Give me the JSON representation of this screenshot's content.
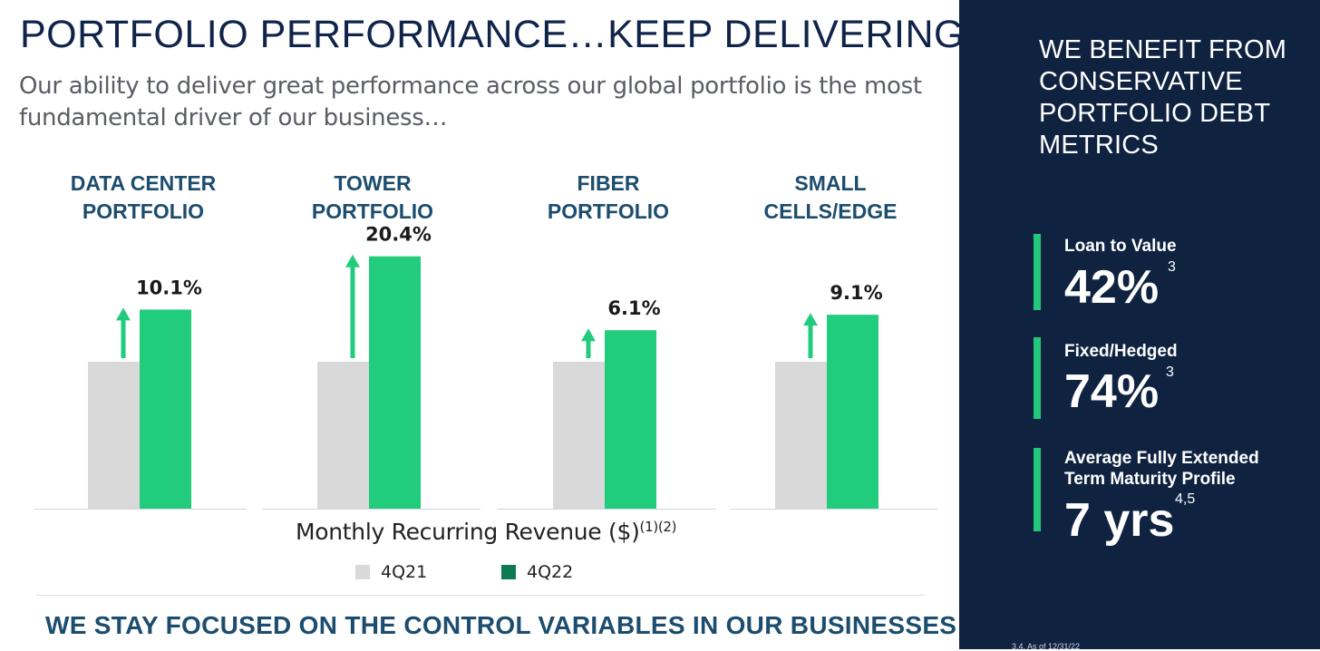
{
  "title": "PORTFOLIO PERFORMANCE…KEEP DELIVERING",
  "subtitle": "Our ability to deliver great performance across our global portfolio is the most fundamental driver of our business…",
  "chart_data": {
    "type": "bar",
    "caption_main": "Monthly Recurring Revenue ($)",
    "caption_sup": "(1)(2)",
    "colors": {
      "4Q21": "#d9d9d9",
      "4Q22": "#22cc7d",
      "legend_4Q22": "#0e7a52",
      "arrow": "#22cc7d"
    },
    "legend": [
      {
        "name": "4Q21"
      },
      {
        "name": "4Q22"
      }
    ],
    "panels": [
      {
        "label_lines": [
          "DATA CENTER",
          "PORTFOLIO"
        ],
        "growth_label": "10.1%",
        "growth": 10.1,
        "values": {
          "4Q21": 1.0,
          "4Q22": 1.101
        }
      },
      {
        "label_lines": [
          "TOWER",
          "PORTFOLIO"
        ],
        "growth_label": "20.4%",
        "growth": 20.4,
        "values": {
          "4Q21": 1.0,
          "4Q22": 1.204
        }
      },
      {
        "label_lines": [
          "FIBER",
          "PORTFOLIO"
        ],
        "growth_label": "6.1%",
        "growth": 6.1,
        "values": {
          "4Q21": 1.0,
          "4Q22": 1.061
        }
      },
      {
        "label_lines": [
          "SMALL",
          "CELLS/EDGE"
        ],
        "growth_label": "9.1%",
        "growth": 9.1,
        "values": {
          "4Q21": 1.0,
          "4Q22": 1.091
        }
      }
    ]
  },
  "bottom_banner": "WE STAY FOCUSED ON THE CONTROL VARIABLES IN OUR BUSINESSES",
  "side_panel": {
    "title": "WE BENEFIT FROM CONSERVATIVE PORTFOLIO DEBT METRICS",
    "metrics": [
      {
        "label": "Loan to Value",
        "value": "42%",
        "footnote": "3"
      },
      {
        "label": "Fixed/Hedged",
        "value": "74%",
        "footnote": "3"
      },
      {
        "label": "Average Fully Extended Term Maturity Profile",
        "value": "7 yrs",
        "footnote": "4,5"
      }
    ],
    "footnote_text": "3.4. As of 12/31/22"
  }
}
